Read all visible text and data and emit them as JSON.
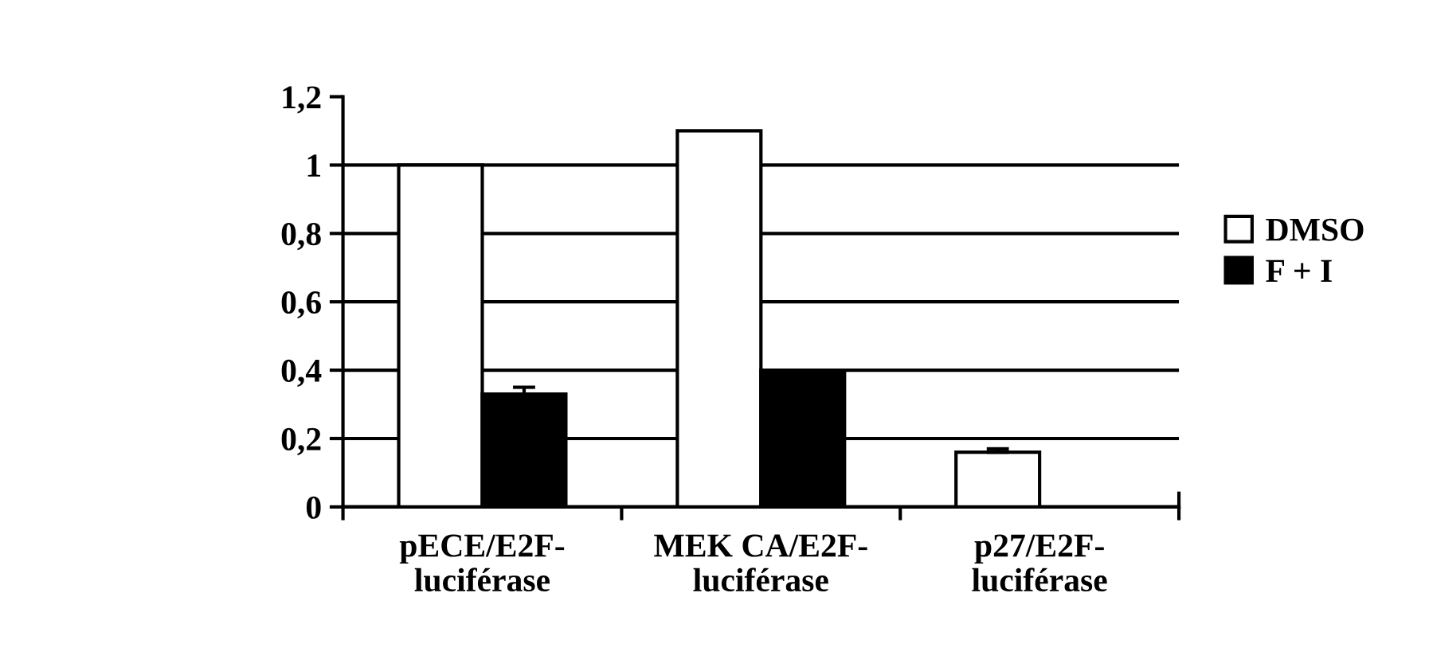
{
  "chart_data": {
    "type": "bar",
    "categories": [
      "pECE/E2F-\nluciférase",
      "MEK CA/E2F-\nluciférase",
      "p27/E2F-\nluciférase"
    ],
    "series": [
      {
        "name": "DMSO",
        "color": "#ffffff",
        "values": [
          1.0,
          1.1,
          0.16
        ],
        "errors": [
          null,
          null,
          [
            0.16,
            0.17
          ]
        ]
      },
      {
        "name": "F + I",
        "color": "#000000",
        "values": [
          0.33,
          0.4,
          null
        ],
        "errors": [
          [
            0.33,
            0.35
          ],
          null,
          null
        ]
      }
    ],
    "ylim": [
      0,
      1.2
    ],
    "yticks": [
      0,
      {
        "value": 0.2,
        "label": "0,2"
      },
      {
        "value": 0.4,
        "label": "0,4"
      },
      {
        "value": 0.6,
        "label": "0,6"
      },
      {
        "value": 0.8,
        "label": "0,8"
      },
      1,
      {
        "value": 1.2,
        "label": "1,2"
      }
    ],
    "grid": "y",
    "legend": "right"
  }
}
